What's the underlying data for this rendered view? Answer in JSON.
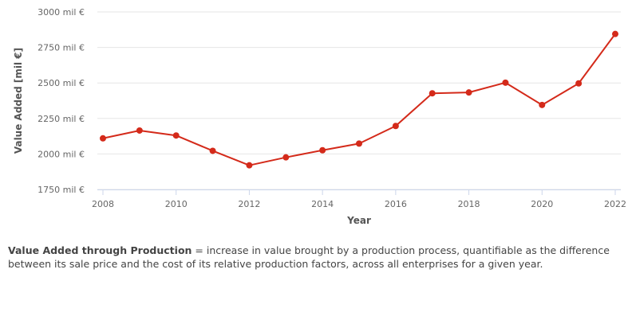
{
  "chart_data": {
    "type": "line",
    "x": [
      2008,
      2009,
      2010,
      2011,
      2012,
      2013,
      2014,
      2015,
      2016,
      2017,
      2018,
      2019,
      2020,
      2021,
      2022
    ],
    "series": [
      {
        "values": [
          2110,
          2165,
          2130,
          2022,
          1920,
          1976,
          2026,
          2073,
          2197,
          2427,
          2433,
          2502,
          2345,
          2497,
          2845
        ]
      }
    ],
    "xlabel": "Year",
    "ylabel": "Value Added [mil €]",
    "ylim": [
      1750,
      3000
    ],
    "xlim": [
      2008,
      2022
    ],
    "y_ticks": [
      "1750 mil €",
      "2000 mil €",
      "2250 mil €",
      "2500 mil €",
      "2750 mil €",
      "3000 mil €"
    ],
    "x_ticks": [
      "2008",
      "2010",
      "2012",
      "2014",
      "2016",
      "2018",
      "2020",
      "2022"
    ],
    "grid": "horizontal",
    "line_color": "#d42a1a"
  },
  "description": {
    "term": "Value Added through Production",
    "text": " = increase in value brought by a production process, quantifiable as the difference between its sale price and the cost of its relative production factors, across all enterprises for a given year."
  }
}
